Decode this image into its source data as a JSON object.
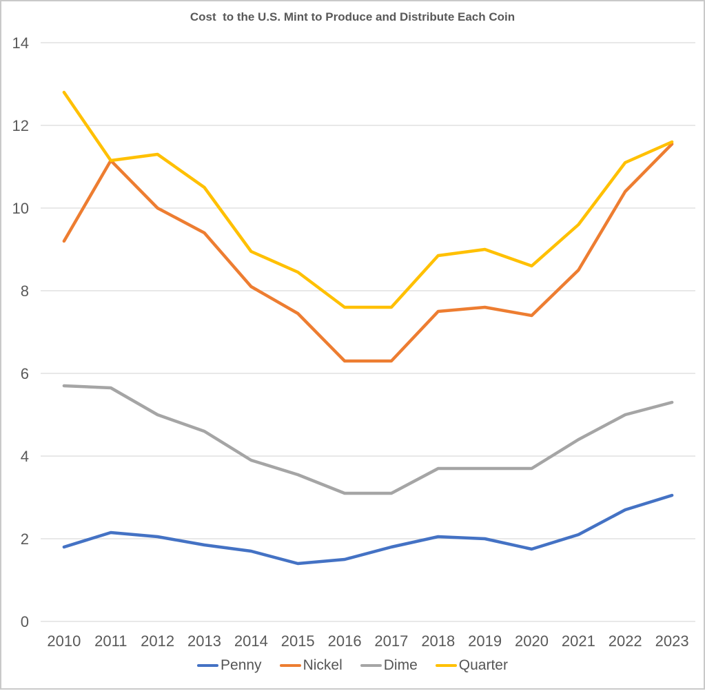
{
  "chart_data": {
    "type": "line",
    "title": "Cost  to the U.S. Mint to Produce and Distribute Each Coin",
    "xlabel": "",
    "ylabel": "",
    "categories": [
      "2010",
      "2011",
      "2012",
      "2013",
      "2014",
      "2015",
      "2016",
      "2017",
      "2018",
      "2019",
      "2020",
      "2021",
      "2022",
      "2023"
    ],
    "series": [
      {
        "name": "Penny",
        "color": "#4472C4",
        "values": [
          1.8,
          2.15,
          2.05,
          1.85,
          1.7,
          1.4,
          1.5,
          1.8,
          2.05,
          2.0,
          1.75,
          2.1,
          2.7,
          3.05
        ]
      },
      {
        "name": "Nickel",
        "color": "#ED7D31",
        "values": [
          9.2,
          11.15,
          10.0,
          9.4,
          8.1,
          7.45,
          6.3,
          6.3,
          7.5,
          7.6,
          7.4,
          8.5,
          10.4,
          11.55
        ]
      },
      {
        "name": "Dime",
        "color": "#A5A5A5",
        "values": [
          5.7,
          5.65,
          5.0,
          4.6,
          3.9,
          3.55,
          3.1,
          3.1,
          3.7,
          3.7,
          3.7,
          4.4,
          5.0,
          5.3
        ]
      },
      {
        "name": "Quarter",
        "color": "#FFC000",
        "values": [
          12.8,
          11.15,
          11.3,
          10.5,
          8.95,
          8.45,
          7.6,
          7.6,
          8.85,
          9.0,
          8.6,
          9.6,
          11.1,
          11.6
        ]
      }
    ],
    "ylim": [
      0,
      14
    ],
    "yticks": [
      0,
      2,
      4,
      6,
      8,
      10,
      12,
      14
    ],
    "grid": true,
    "legend_position": "bottom"
  },
  "colors": {
    "background": "#FFFFFF",
    "grid": "#D9D9D9",
    "text": "#595959",
    "border": "#C9C9C9"
  }
}
